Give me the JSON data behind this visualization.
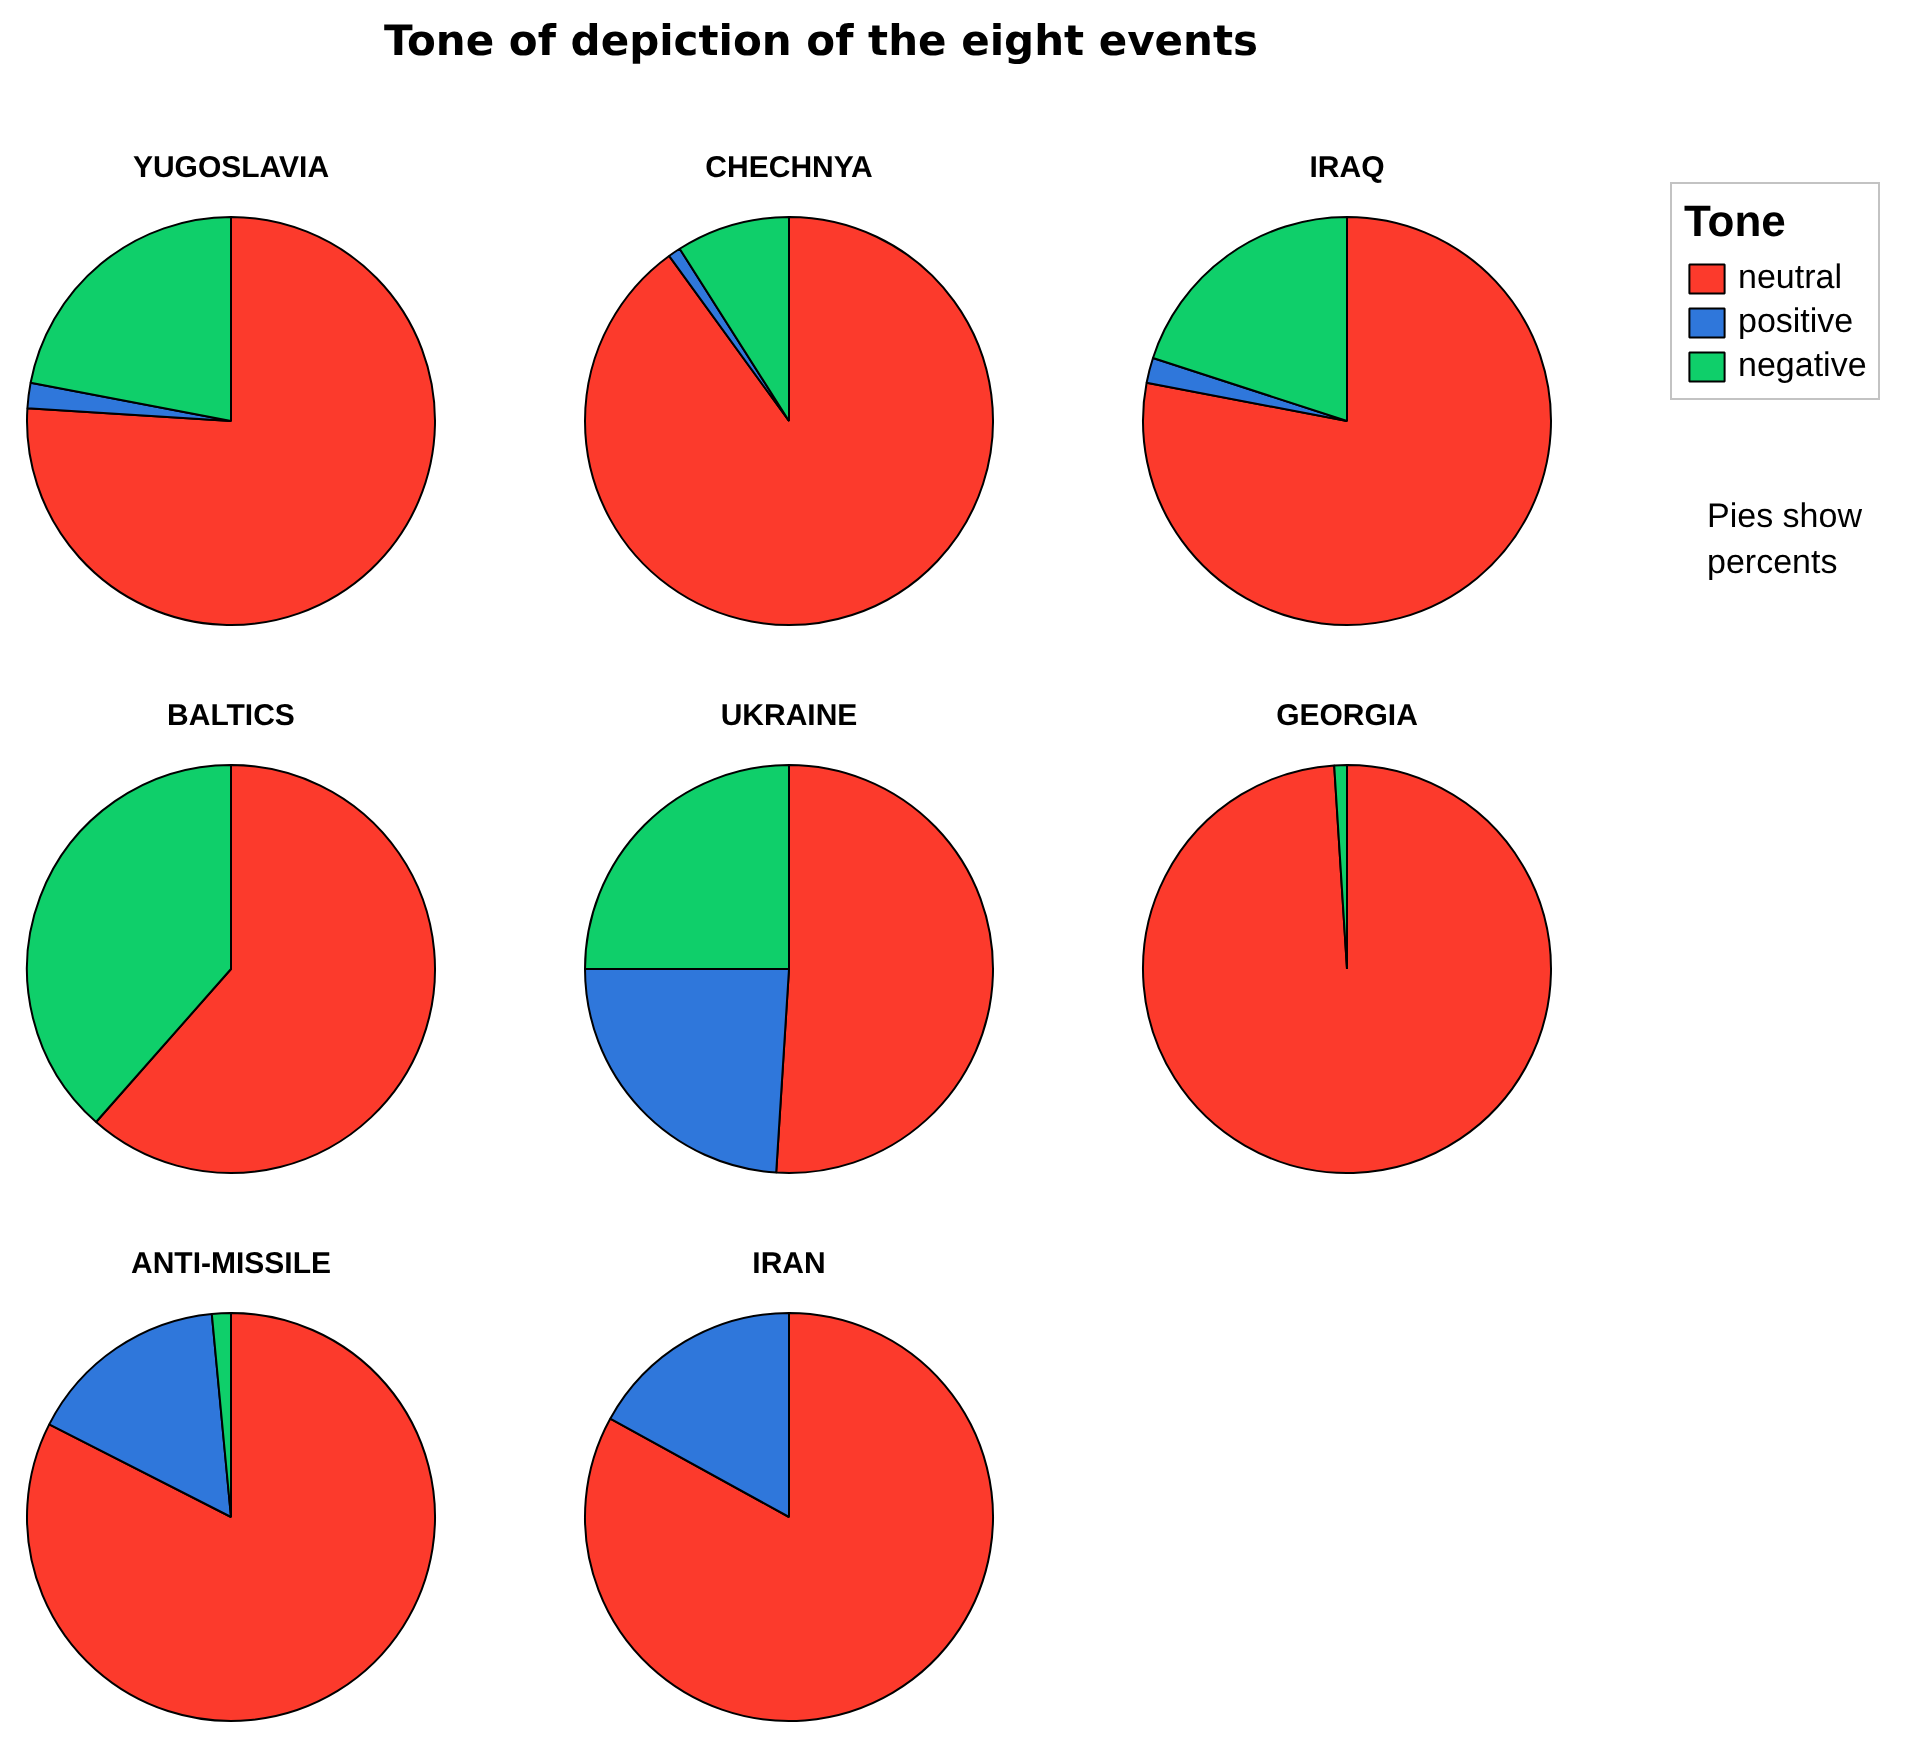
{
  "chart_data": [
    {
      "type": "pie",
      "title": "YUGOSLAVIA",
      "legend": "right",
      "legend_title": "Tone",
      "annotations": [
        "Tone of depiction of the eight events",
        "Pies show percents"
      ],
      "categories": [
        "neutral",
        "positive",
        "negative"
      ],
      "values": [
        76,
        2,
        22
      ],
      "colors": [
        "#fc3a2c",
        "#2f77db",
        "#0fcf6a"
      ]
    },
    {
      "type": "pie",
      "title": "CHECHNYA",
      "categories": [
        null,
        null,
        null
      ],
      "values": [
        90,
        1,
        9
      ],
      "colors": [
        "#fc3a2c",
        "#2f77db",
        "#0fcf6a"
      ]
    },
    {
      "type": "pie",
      "title": "IRAQ",
      "categories": [
        null,
        null,
        null
      ],
      "values": [
        78,
        2,
        20
      ],
      "colors": [
        "#fc3a2c",
        "#2f77db",
        "#0fcf6a"
      ]
    },
    {
      "type": "pie",
      "title": "BALTICS",
      "categories": [
        null,
        null,
        null
      ],
      "values": [
        61.5,
        0,
        38.5
      ],
      "colors": [
        "#fc3a2c",
        "#2f77db",
        "#0fcf6a"
      ]
    },
    {
      "type": "pie",
      "title": "UKRAINE",
      "categories": [
        null,
        null,
        null
      ],
      "values": [
        51,
        24,
        25
      ],
      "colors": [
        "#fc3a2c",
        "#2f77db",
        "#0fcf6a"
      ]
    },
    {
      "type": "pie",
      "title": "GEORGIA",
      "categories": [
        null,
        null,
        null
      ],
      "values": [
        99,
        0,
        1
      ],
      "colors": [
        "#fc3a2c",
        "#2f77db",
        "#0fcf6a"
      ]
    },
    {
      "type": "pie",
      "title": "ANTI-MISSILE",
      "categories": [
        null,
        null,
        null
      ],
      "values": [
        82.5,
        16,
        1.5
      ],
      "colors": [
        "#fc3a2c",
        "#2f77db",
        "#0fcf6a"
      ]
    },
    {
      "type": "pie",
      "title": "IRAN",
      "categories": [
        null,
        null,
        null
      ],
      "values": [
        83,
        17,
        0
      ],
      "colors": [
        "#fc3a2c",
        "#2f77db",
        "#0fcf6a"
      ]
    }
  ]
}
